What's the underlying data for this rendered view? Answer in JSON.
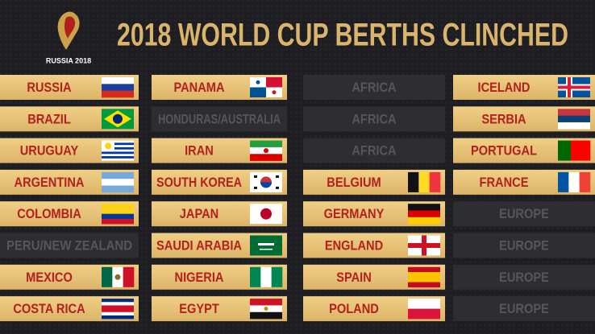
{
  "logo": {
    "text": "RUSSIA 2018"
  },
  "title": "2018 WORLD CUP BERTHS CLINCHED",
  "columns": [
    [
      "RUSSIA",
      "BRAZIL",
      "URUGUAY",
      "ARGENTINA",
      "COLOMBIA",
      "PERU/NEW ZEALAND",
      "MEXICO",
      "COSTA RICA"
    ],
    [
      "PANAMA",
      "HONDURAS/AUSTRALIA",
      "IRAN",
      "SOUTH KOREA",
      "JAPAN",
      "SAUDI ARABIA",
      "NIGERIA",
      "EGYPT"
    ],
    [
      "AFRICA",
      "AFRICA",
      "AFRICA",
      "BELGIUM",
      "GERMANY",
      "ENGLAND",
      "SPAIN",
      "POLAND"
    ],
    [
      "ICELAND",
      "SERBIA",
      "PORTUGAL",
      "FRANCE",
      "EUROPE",
      "EUROPE",
      "EUROPE",
      "EUROPE"
    ]
  ]
}
